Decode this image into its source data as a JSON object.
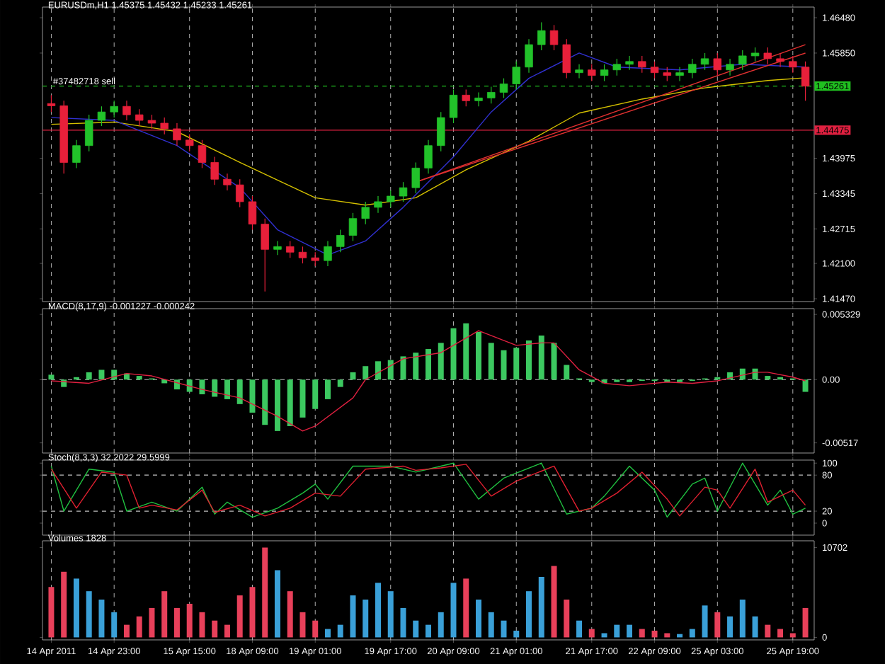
{
  "chart_data": [
    {
      "type": "candlestick",
      "title": "EURUSDm,H1 1.45375 1.45432 1.45233 1.45261",
      "tick_labels": "y",
      "grid": "x",
      "categories": [
        "14 Apr 2011",
        null,
        null,
        null,
        null,
        "14 Apr 23:00",
        null,
        null,
        null,
        null,
        null,
        "15 Apr 15:00",
        null,
        null,
        null,
        null,
        "18 Apr 09:00",
        null,
        null,
        null,
        null,
        "19 Apr 01:00",
        null,
        null,
        null,
        null,
        null,
        "19 Apr 17:00",
        null,
        null,
        null,
        null,
        "20 Apr 09:00",
        null,
        null,
        null,
        null,
        "21 Apr 01:00",
        null,
        null,
        null,
        null,
        null,
        "21 Apr 17:00",
        null,
        null,
        null,
        null,
        "22 Apr 09:00",
        null,
        null,
        null,
        null,
        "25 Apr 03:00",
        null,
        null,
        null,
        null,
        null,
        "25 Apr 19:00",
        null
      ],
      "ohlc": [
        [
          1.4495,
          1.451,
          1.448,
          1.4491
        ],
        [
          1.4491,
          1.45,
          1.437,
          1.439
        ],
        [
          1.439,
          1.443,
          1.438,
          1.442
        ],
        [
          1.442,
          1.4475,
          1.441,
          1.4465
        ],
        [
          1.4465,
          1.449,
          1.4455,
          1.448
        ],
        [
          1.448,
          1.45,
          1.447,
          1.449
        ],
        [
          1.449,
          1.45,
          1.4465,
          1.4475
        ],
        [
          1.4475,
          1.4485,
          1.4455,
          1.4465
        ],
        [
          1.4465,
          1.4475,
          1.445,
          1.446
        ],
        [
          1.446,
          1.447,
          1.444,
          1.445
        ],
        [
          1.445,
          1.446,
          1.442,
          1.443
        ],
        [
          1.443,
          1.444,
          1.441,
          1.442
        ],
        [
          1.442,
          1.443,
          1.438,
          1.439
        ],
        [
          1.439,
          1.44,
          1.435,
          1.436
        ],
        [
          1.436,
          1.437,
          1.434,
          1.435
        ],
        [
          1.435,
          1.436,
          1.431,
          1.432
        ],
        [
          1.432,
          1.433,
          1.427,
          1.428
        ],
        [
          1.428,
          1.429,
          1.416,
          1.4235
        ],
        [
          1.4235,
          1.425,
          1.4225,
          1.424
        ],
        [
          1.424,
          1.425,
          1.422,
          1.423
        ],
        [
          1.423,
          1.424,
          1.421,
          1.422
        ],
        [
          1.422,
          1.423,
          1.4205,
          1.4215
        ],
        [
          1.4215,
          1.425,
          1.4205,
          1.424
        ],
        [
          1.424,
          1.427,
          1.423,
          1.426
        ],
        [
          1.426,
          1.43,
          1.425,
          1.429
        ],
        [
          1.429,
          1.432,
          1.428,
          1.431
        ],
        [
          1.431,
          1.433,
          1.43,
          1.432
        ],
        [
          1.432,
          1.434,
          1.431,
          1.433
        ],
        [
          1.433,
          1.4355,
          1.432,
          1.4345
        ],
        [
          1.4345,
          1.439,
          1.4335,
          1.438
        ],
        [
          1.438,
          1.443,
          1.437,
          1.442
        ],
        [
          1.442,
          1.448,
          1.441,
          1.447
        ],
        [
          1.447,
          1.452,
          1.446,
          1.451
        ],
        [
          1.451,
          1.452,
          1.449,
          1.45
        ],
        [
          1.45,
          1.4515,
          1.449,
          1.4505
        ],
        [
          1.4505,
          1.4525,
          1.4495,
          1.4515
        ],
        [
          1.4515,
          1.454,
          1.4505,
          1.453
        ],
        [
          1.453,
          1.457,
          1.452,
          1.456
        ],
        [
          1.456,
          1.461,
          1.455,
          1.46
        ],
        [
          1.46,
          1.464,
          1.459,
          1.4625
        ],
        [
          1.4625,
          1.4635,
          1.459,
          1.46
        ],
        [
          1.46,
          1.461,
          1.454,
          1.455
        ],
        [
          1.455,
          1.4565,
          1.454,
          1.4555
        ],
        [
          1.4555,
          1.4565,
          1.4535,
          1.4545
        ],
        [
          1.4545,
          1.4565,
          1.4535,
          1.4555
        ],
        [
          1.4555,
          1.4575,
          1.4545,
          1.4565
        ],
        [
          1.4565,
          1.458,
          1.4555,
          1.457
        ],
        [
          1.457,
          1.458,
          1.455,
          1.456
        ],
        [
          1.456,
          1.457,
          1.454,
          1.455
        ],
        [
          1.455,
          1.456,
          1.4535,
          1.4545
        ],
        [
          1.4545,
          1.456,
          1.4535,
          1.455
        ],
        [
          1.455,
          1.4575,
          1.454,
          1.4565
        ],
        [
          1.4565,
          1.4585,
          1.4555,
          1.4575
        ],
        [
          1.4575,
          1.4585,
          1.4545,
          1.4555
        ],
        [
          1.4555,
          1.4575,
          1.4545,
          1.4565
        ],
        [
          1.4565,
          1.459,
          1.4555,
          1.458
        ],
        [
          1.458,
          1.4595,
          1.457,
          1.4585
        ],
        [
          1.4585,
          1.4595,
          1.4565,
          1.4575
        ],
        [
          1.4575,
          1.4585,
          1.456,
          1.457
        ],
        [
          1.457,
          1.458,
          1.455,
          1.456
        ],
        [
          1.456,
          1.457,
          1.45,
          1.4526
        ]
      ],
      "colors": [
        "#e8203a",
        "#e8203a",
        "#22c22a",
        "#22c22a",
        "#22c22a",
        "#22c22a",
        "#e8203a",
        "#e8203a",
        "#e8203a",
        "#e8203a",
        "#e8203a",
        "#e8203a",
        "#e8203a",
        "#e8203a",
        "#e8203a",
        "#e8203a",
        "#e8203a",
        "#e8203a",
        "#22c22a",
        "#e8203a",
        "#e8203a",
        "#e8203a",
        "#22c22a",
        "#22c22a",
        "#22c22a",
        "#22c22a",
        "#22c22a",
        "#22c22a",
        "#22c22a",
        "#22c22a",
        "#22c22a",
        "#22c22a",
        "#22c22a",
        "#e8203a",
        "#22c22a",
        "#22c22a",
        "#22c22a",
        "#22c22a",
        "#22c22a",
        "#22c22a",
        "#e8203a",
        "#e8203a",
        "#22c22a",
        "#e8203a",
        "#22c22a",
        "#22c22a",
        "#22c22a",
        "#e8203a",
        "#e8203a",
        "#e8203a",
        "#22c22a",
        "#22c22a",
        "#22c22a",
        "#e8203a",
        "#22c22a",
        "#22c22a",
        "#22c22a",
        "#e8203a",
        "#e8203a",
        "#e8203a",
        "#e8203a"
      ],
      "series": [
        {
          "type": "line",
          "color": "#d4c000",
          "values": [
            1.4458,
            null,
            null,
            null,
            null,
            1.4462,
            null,
            null,
            null,
            null,
            1.4445,
            null,
            null,
            null,
            null,
            1.439,
            null,
            null,
            null,
            null,
            null,
            1.4327,
            null,
            null,
            null,
            1.4314,
            null,
            null,
            null,
            1.4327,
            null,
            null,
            null,
            1.4377,
            null,
            null,
            null,
            null,
            1.4428,
            null,
            null,
            null,
            1.4478,
            null,
            null,
            null,
            null,
            1.4503,
            null,
            null,
            null,
            null,
            1.4523,
            null,
            null,
            null,
            null,
            1.4536,
            null,
            null,
            1.4541
          ]
        },
        {
          "type": "line",
          "color": "#3030d0",
          "values": [
            1.447,
            null,
            null,
            null,
            null,
            1.4465,
            null,
            null,
            null,
            null,
            1.442,
            null,
            null,
            null,
            null,
            1.4345,
            null,
            null,
            1.427,
            null,
            null,
            null,
            1.4225,
            null,
            null,
            1.425,
            null,
            null,
            1.431,
            null,
            null,
            null,
            1.44,
            null,
            null,
            1.448,
            null,
            null,
            1.454,
            null,
            null,
            null,
            1.4585,
            null,
            null,
            1.456,
            null,
            null,
            null,
            null,
            1.4555,
            null,
            null,
            null,
            null,
            1.4565,
            null,
            null,
            null,
            null,
            1.456
          ]
        },
        {
          "type": "line",
          "color": "#e03030",
          "values": [
            null,
            null,
            null,
            null,
            null,
            null,
            null,
            null,
            null,
            null,
            null,
            null,
            null,
            null,
            null,
            null,
            null,
            null,
            null,
            null,
            null,
            null,
            null,
            null,
            null,
            null,
            null,
            null,
            null,
            1.4355,
            null,
            null,
            null,
            null,
            null,
            null,
            null,
            null,
            null,
            null,
            null,
            null,
            null,
            null,
            null,
            null,
            null,
            null,
            null,
            null,
            null,
            null,
            null,
            null,
            null,
            null,
            null,
            null,
            null,
            null,
            1.4585
          ]
        },
        {
          "type": "line",
          "color": "#e03030",
          "values": [
            null,
            null,
            null,
            null,
            null,
            null,
            null,
            null,
            null,
            null,
            null,
            null,
            null,
            null,
            null,
            null,
            null,
            null,
            null,
            null,
            null,
            null,
            null,
            null,
            null,
            null,
            null,
            null,
            null,
            1.4355,
            null,
            null,
            null,
            null,
            null,
            null,
            null,
            null,
            null,
            null,
            null,
            null,
            null,
            null,
            null,
            null,
            null,
            null,
            null,
            null,
            null,
            null,
            null,
            null,
            null,
            null,
            null,
            null,
            null,
            null,
            1.46
          ]
        }
      ],
      "ylim": [
        1.4142,
        1.4667
      ],
      "yticks": [
        {
          "value": 1.4648,
          "label": "1.46480"
        },
        {
          "value": 1.4585,
          "label": "1.45850"
        },
        {
          "value": 1.43975,
          "label": "1.43975"
        },
        {
          "value": 1.43345,
          "label": "1.43345"
        },
        {
          "value": 1.42715,
          "label": "1.42715"
        },
        {
          "value": 1.421,
          "label": "1.42100"
        },
        {
          "value": 1.4147,
          "label": "1.41470"
        }
      ],
      "ref_lines": [
        {
          "axis": "y",
          "value": 1.45261,
          "label": "1.45261",
          "color": "#20c020",
          "line_style": "dashed"
        },
        {
          "axis": "y",
          "value": 1.44475,
          "label": "1.44475",
          "color": "#e02040",
          "line_style": "solid"
        }
      ],
      "annotations": [
        {
          "text": "#37482718 sell",
          "x": "14 Apr 2011",
          "y": 1.45261
        }
      ]
    },
    {
      "type": "bar",
      "title": "MACD(8,17,9) -0.001227 -0.000242",
      "tick_labels": "y",
      "grid": "x",
      "categories": [
        "14 Apr 2011",
        null,
        null,
        null,
        null,
        "14 Apr 23:00",
        null,
        null,
        null,
        null,
        null,
        "15 Apr 15:00",
        null,
        null,
        null,
        null,
        "18 Apr 09:00",
        null,
        null,
        null,
        null,
        "19 Apr 01:00",
        null,
        null,
        null,
        null,
        null,
        "19 Apr 17:00",
        null,
        null,
        null,
        null,
        "20 Apr 09:00",
        null,
        null,
        null,
        null,
        "21 Apr 01:00",
        null,
        null,
        null,
        null,
        null,
        "21 Apr 17:00",
        null,
        null,
        null,
        null,
        "22 Apr 09:00",
        null,
        null,
        null,
        null,
        "25 Apr 03:00",
        null,
        null,
        null,
        null,
        null,
        "25 Apr 19:00",
        null
      ],
      "series": [
        {
          "type": "bar",
          "color": "#3cc860",
          "values": [
            0.0004,
            -0.0006,
            0.0002,
            0.0006,
            0.0008,
            0.0008,
            0.0005,
            0.0003,
            0.0001,
            -0.0003,
            -0.0008,
            -0.001,
            -0.0012,
            -0.0014,
            -0.0016,
            -0.002,
            -0.0027,
            -0.0037,
            -0.0042,
            -0.0038,
            -0.0031,
            -0.0024,
            -0.0016,
            -0.0006,
            0.0006,
            0.0011,
            0.0015,
            0.0016,
            0.0019,
            0.0022,
            0.0025,
            0.003,
            0.0042,
            0.0046,
            0.0039,
            0.003,
            0.0024,
            0.0026,
            0.0032,
            0.0036,
            0.003,
            0.0012,
            0.0001,
            -0.0002,
            -0.0003,
            -0.0002,
            -0.0002,
            -0.0001,
            -0.0001,
            -0.0002,
            -0.0002,
            -0.0001,
            0.0001,
            0.0002,
            0.0006,
            0.0009,
            0.0009,
            0.0003,
            0.0002,
            0.0001,
            -0.001
          ]
        },
        {
          "type": "line",
          "color": "#e02040",
          "values": [
            -0.0001,
            null,
            null,
            -0.0003,
            null,
            null,
            0.0005,
            null,
            0.0003,
            null,
            null,
            null,
            -0.0008,
            null,
            null,
            -0.0015,
            null,
            null,
            -0.003,
            null,
            -0.0042,
            -0.0038,
            null,
            null,
            -0.0015,
            0.0,
            null,
            null,
            0.0017,
            null,
            null,
            0.0022,
            null,
            null,
            0.004,
            null,
            null,
            0.0028,
            null,
            0.003,
            0.003,
            null,
            0.0008,
            null,
            -0.0003,
            null,
            -0.0005,
            null,
            null,
            -0.0002,
            null,
            -0.0003,
            null,
            -0.0001,
            null,
            null,
            0.0006,
            0.0006,
            null,
            0.0002,
            -0.0001
          ]
        }
      ],
      "ylim": [
        -0.006,
        0.0058
      ],
      "yticks": [
        {
          "value": 0.005329,
          "label": "0.005329"
        },
        {
          "value": 0,
          "label": "0.00"
        },
        {
          "value": -0.00517,
          "label": "-0.00517"
        }
      ],
      "ref_lines": [
        {
          "axis": "y",
          "value": 0,
          "color": "#c0c0c0",
          "line_style": "dashed"
        }
      ]
    },
    {
      "type": "line",
      "title": "Stoch(8,3,3) 32.2022 29.5999",
      "tick_labels": "y",
      "grid": "x",
      "categories": [
        "14 Apr 2011",
        null,
        null,
        null,
        null,
        "14 Apr 23:00",
        null,
        null,
        null,
        null,
        null,
        "15 Apr 15:00",
        null,
        null,
        null,
        null,
        "18 Apr 09:00",
        null,
        null,
        null,
        null,
        "19 Apr 01:00",
        null,
        null,
        null,
        null,
        null,
        "19 Apr 17:00",
        null,
        null,
        null,
        null,
        "20 Apr 09:00",
        null,
        null,
        null,
        null,
        "21 Apr 01:00",
        null,
        null,
        null,
        null,
        null,
        "21 Apr 17:00",
        null,
        null,
        null,
        null,
        "22 Apr 09:00",
        null,
        null,
        null,
        null,
        "25 Apr 03:00",
        null,
        null,
        null,
        null,
        null,
        "25 Apr 19:00",
        null
      ],
      "series": [
        {
          "color": "#20c040",
          "values": [
            95,
            20,
            null,
            90,
            null,
            85,
            20,
            null,
            35,
            null,
            20,
            null,
            60,
            15,
            35,
            null,
            10,
            null,
            25,
            null,
            50,
            65,
            40,
            null,
            95,
            null,
            null,
            95,
            null,
            85,
            90,
            null,
            100,
            null,
            40,
            null,
            75,
            null,
            null,
            100,
            null,
            15,
            null,
            25,
            45,
            null,
            95,
            null,
            55,
            10,
            null,
            65,
            75,
            20,
            null,
            100,
            null,
            30,
            55,
            15,
            25
          ]
        },
        {
          "color": "#e02030",
          "values": [
            90,
            null,
            25,
            null,
            85,
            null,
            80,
            25,
            30,
            null,
            22,
            null,
            55,
            18,
            null,
            30,
            null,
            12,
            null,
            25,
            null,
            50,
            null,
            45,
            null,
            90,
            null,
            null,
            95,
            88,
            null,
            92,
            null,
            98,
            null,
            45,
            null,
            70,
            null,
            null,
            95,
            null,
            20,
            25,
            null,
            50,
            null,
            85,
            null,
            40,
            12,
            null,
            60,
            55,
            25,
            null,
            90,
            35,
            null,
            55,
            30
          ]
        }
      ],
      "ylim": [
        -20,
        105
      ],
      "yticks": [
        0,
        20,
        80,
        100
      ],
      "ref_lines": [
        {
          "axis": "y",
          "value": 80,
          "color": "#c0c0c0",
          "line_style": "dashed"
        },
        {
          "axis": "y",
          "value": 20,
          "color": "#c0c0c0",
          "line_style": "dashed"
        }
      ]
    },
    {
      "type": "bar",
      "title": "Volumes 1828",
      "grid": "x",
      "categories": [
        "14 Apr 2011",
        null,
        null,
        null,
        null,
        "14 Apr 23:00",
        null,
        null,
        null,
        null,
        null,
        "15 Apr 15:00",
        null,
        null,
        null,
        null,
        "18 Apr 09:00",
        null,
        null,
        null,
        null,
        "19 Apr 01:00",
        null,
        null,
        null,
        null,
        null,
        "19 Apr 17:00",
        null,
        null,
        null,
        null,
        "20 Apr 09:00",
        null,
        null,
        null,
        null,
        "21 Apr 01:00",
        null,
        null,
        null,
        null,
        null,
        "21 Apr 17:00",
        null,
        null,
        null,
        null,
        "22 Apr 09:00",
        null,
        null,
        null,
        null,
        "25 Apr 03:00",
        null,
        null,
        null,
        null,
        null,
        "25 Apr 19:00",
        null
      ],
      "values": [
        6000,
        7800,
        7000,
        5500,
        4500,
        3000,
        1500,
        2500,
        3500,
        5500,
        3500,
        4000,
        3000,
        2000,
        1500,
        5000,
        6000,
        10700,
        8000,
        5500,
        3000,
        2000,
        1000,
        1500,
        5000,
        4500,
        6500,
        5500,
        3500,
        2000,
        1500,
        3000,
        6500,
        7000,
        4500,
        3000,
        2000,
        800,
        5500,
        7200,
        8500,
        4500,
        2000,
        1000,
        500,
        1500,
        1500,
        1000,
        800,
        500,
        400,
        1000,
        3800,
        3000,
        2500,
        4500,
        2500,
        1500,
        1000,
        500,
        3500
      ],
      "colors": [
        "#e8405a",
        "#e8405a",
        "#3aa0d8",
        "#3aa0d8",
        "#3aa0d8",
        "#3aa0d8",
        "#e8405a",
        "#e8405a",
        "#e8405a",
        "#e8405a",
        "#e8405a",
        "#e8405a",
        "#e8405a",
        "#e8405a",
        "#e8405a",
        "#e8405a",
        "#e8405a",
        "#e8405a",
        "#3aa0d8",
        "#e8405a",
        "#e8405a",
        "#e8405a",
        "#3aa0d8",
        "#3aa0d8",
        "#3aa0d8",
        "#3aa0d8",
        "#3aa0d8",
        "#3aa0d8",
        "#3aa0d8",
        "#3aa0d8",
        "#3aa0d8",
        "#3aa0d8",
        "#3aa0d8",
        "#e8405a",
        "#3aa0d8",
        "#3aa0d8",
        "#3aa0d8",
        "#3aa0d8",
        "#3aa0d8",
        "#3aa0d8",
        "#e8405a",
        "#e8405a",
        "#3aa0d8",
        "#e8405a",
        "#3aa0d8",
        "#3aa0d8",
        "#3aa0d8",
        "#e8405a",
        "#e8405a",
        "#e8405a",
        "#3aa0d8",
        "#3aa0d8",
        "#3aa0d8",
        "#e8405a",
        "#3aa0d8",
        "#3aa0d8",
        "#3aa0d8",
        "#e8405a",
        "#e8405a",
        "#e8405a",
        "#e8405a"
      ],
      "ylim": [
        -300,
        11500
      ],
      "yticks": [
        0,
        10702
      ]
    }
  ]
}
